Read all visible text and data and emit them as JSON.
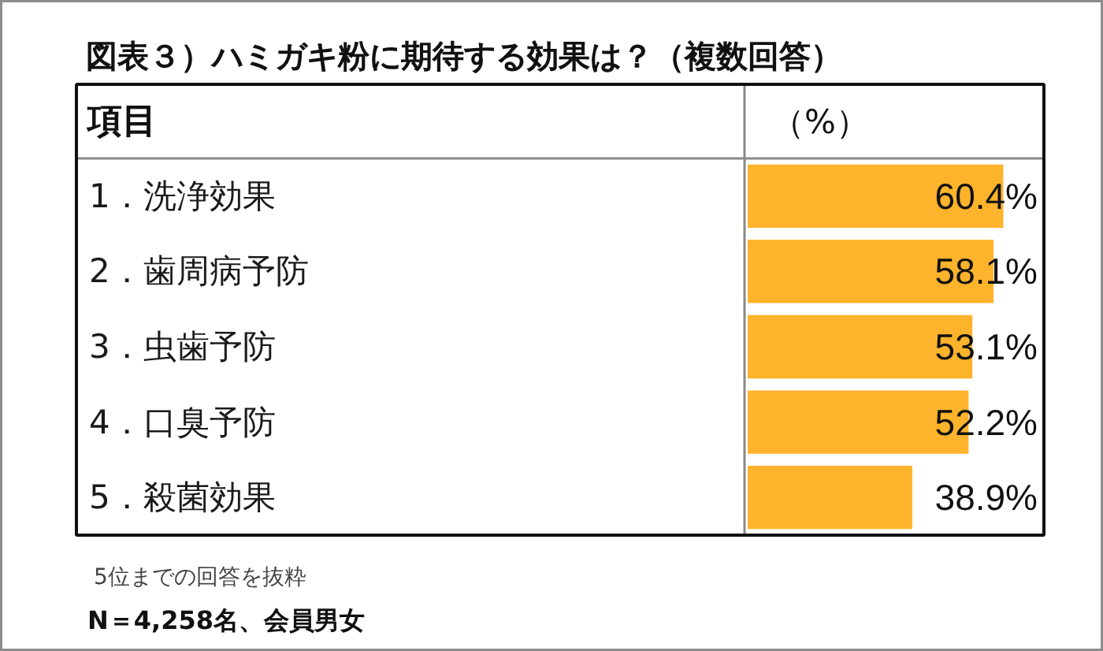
{
  "chart_data": {
    "type": "bar",
    "orientation": "horizontal",
    "title": "図表３）ハミガキ粉に期待する効果は？（複数回答）",
    "ylabel": "項目",
    "xlabel": "（%）",
    "categories": [
      "1．洗浄効果",
      "2．歯周病予防",
      "3．虫歯予防",
      "4．口臭予防",
      "5．殺菌効果"
    ],
    "values": [
      60.4,
      58.1,
      53.1,
      52.2,
      38.9
    ],
    "value_labels": [
      "60.4%",
      "58.1%",
      "53.1%",
      "52.2%",
      "38.9%"
    ],
    "color": "#fdb32b",
    "xlim": [
      0,
      70
    ],
    "tick_labels": "y",
    "annotations": [
      "5位までの回答を抜粋",
      "N＝4,258名、会員男女"
    ]
  }
}
